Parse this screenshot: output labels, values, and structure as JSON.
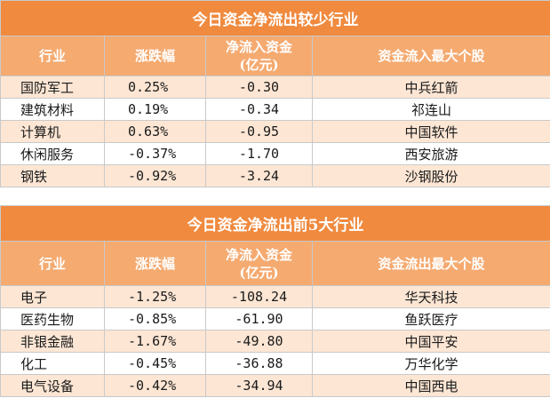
{
  "table1": {
    "title": "今日资金净流出较少行业",
    "headers": [
      "行业",
      "涨跌幅",
      "净流入资金\n(亿元)",
      "资金流入最大个股"
    ],
    "rows": [
      {
        "industry": "国防军工",
        "change": "0.25%",
        "net_inflow": "-0.30",
        "top_stock": "中兵红箭"
      },
      {
        "industry": "建筑材料",
        "change": "0.19%",
        "net_inflow": "-0.34",
        "top_stock": "祁连山"
      },
      {
        "industry": "计算机",
        "change": "0.63%",
        "net_inflow": "-0.95",
        "top_stock": "中国软件"
      },
      {
        "industry": "休闲服务",
        "change": "-0.37%",
        "net_inflow": "-1.70",
        "top_stock": "西安旅游"
      },
      {
        "industry": "钢铁",
        "change": "-0.92%",
        "net_inflow": "-3.24",
        "top_stock": "沙钢股份"
      }
    ]
  },
  "table2": {
    "title": "今日资金净流出前5大行业",
    "headers": [
      "行业",
      "涨跌幅",
      "净流入资金\n(亿元)",
      "资金流出最大个股"
    ],
    "rows": [
      {
        "industry": "电子",
        "change": "-1.25%",
        "net_inflow": "-108.24",
        "top_stock": "华天科技"
      },
      {
        "industry": "医药生物",
        "change": "-0.85%",
        "net_inflow": "-61.90",
        "top_stock": "鱼跃医疗"
      },
      {
        "industry": "非银金融",
        "change": "-1.67%",
        "net_inflow": "-49.80",
        "top_stock": "中国平安"
      },
      {
        "industry": "化工",
        "change": "-0.45%",
        "net_inflow": "-36.88",
        "top_stock": "万华化学"
      },
      {
        "industry": "电气设备",
        "change": "-0.42%",
        "net_inflow": "-34.94",
        "top_stock": "中国西电"
      }
    ]
  }
}
